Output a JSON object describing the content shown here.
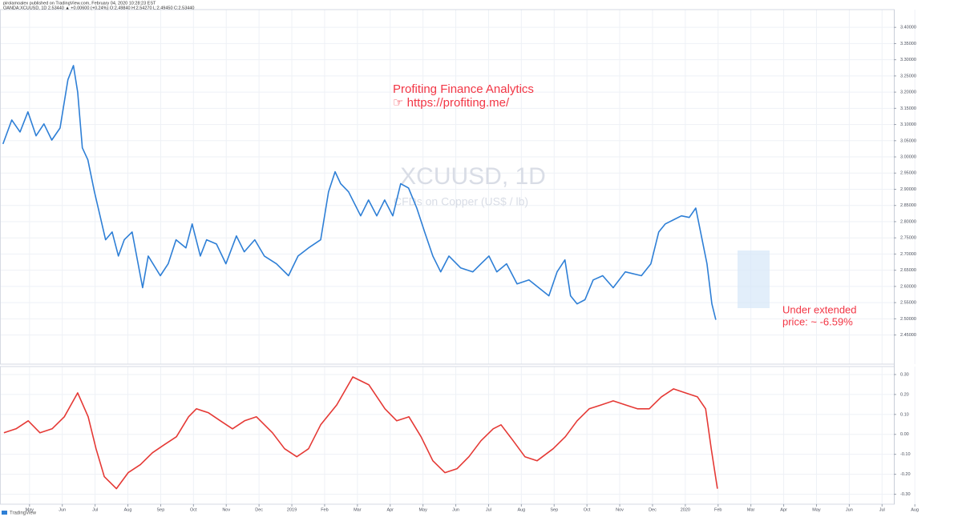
{
  "header": {
    "line1": "pirolamoalex published on TradingView.com, February 04, 2020 10:28:23 EST",
    "line2": "OANDA:XCUUSD, 1D 2.53440 ▲ +0.00600 (+0.24%) O:2.49840 H:2.54270 L:2.49450 C:2.53440"
  },
  "footer": "TradingView",
  "chart_data": [
    {
      "type": "line",
      "title": "XCUUSD, 1D",
      "subtitle": "CFDs on Copper (US$ / lb)",
      "annotations": [
        "Profiting Finance Analytics",
        "☞ https://profiting.me/",
        "Under extended",
        "price: ~ -6.59%"
      ],
      "x": [
        -0.81,
        -0.54,
        -0.29,
        -0.05,
        0.2,
        0.44,
        0.68,
        0.93,
        1.17,
        1.34,
        1.47,
        1.61,
        1.78,
        1.98,
        2.15,
        2.32,
        2.52,
        2.71,
        2.89,
        3.13,
        3.45,
        3.62,
        3.99,
        4.23,
        4.47,
        4.77,
        4.96,
        5.21,
        5.4,
        5.7,
        5.99,
        6.31,
        6.55,
        6.87,
        7.16,
        7.53,
        7.9,
        8.19,
        8.51,
        8.88,
        9.12,
        9.32,
        9.49,
        9.73,
        10.1,
        10.34,
        10.59,
        10.83,
        11.08,
        11.32,
        11.56,
        11.81,
        12.05,
        12.3,
        12.54,
        12.79,
        13.15,
        13.52,
        13.77,
        14.01,
        14.25,
        14.55,
        14.87,
        15.23,
        15.53,
        15.84,
        16.09,
        16.33,
        16.5,
        16.7,
        16.94,
        17.19,
        17.48,
        17.8,
        18.17,
        18.66,
        18.95,
        19.19,
        19.39,
        19.63,
        19.88,
        20.12,
        20.32,
        20.49,
        20.66,
        20.81,
        20.93
      ],
      "series": [
        {
          "name": "XCUUSD",
          "color": "#2e7fd6",
          "values": [
            3.04,
            3.114,
            3.077,
            3.139,
            3.065,
            3.102,
            3.052,
            3.089,
            3.238,
            3.282,
            3.2,
            3.028,
            2.991,
            2.892,
            2.818,
            2.744,
            2.768,
            2.694,
            2.744,
            2.768,
            2.596,
            2.694,
            2.633,
            2.67,
            2.744,
            2.719,
            2.793,
            2.694,
            2.744,
            2.731,
            2.67,
            2.756,
            2.707,
            2.744,
            2.694,
            2.67,
            2.633,
            2.694,
            2.719,
            2.744,
            2.892,
            2.954,
            2.917,
            2.892,
            2.818,
            2.867,
            2.818,
            2.867,
            2.818,
            2.917,
            2.904,
            2.842,
            2.768,
            2.694,
            2.645,
            2.694,
            2.657,
            2.645,
            2.67,
            2.694,
            2.645,
            2.67,
            2.608,
            2.62,
            2.596,
            2.571,
            2.645,
            2.682,
            2.571,
            2.546,
            2.559,
            2.62,
            2.633,
            2.596,
            2.645,
            2.633,
            2.67,
            2.768,
            2.793,
            2.805,
            2.818,
            2.813,
            2.842,
            2.756,
            2.67,
            2.546,
            2.497
          ]
        }
      ],
      "xlim": [
        -0.9,
        26.36
      ],
      "ylim": [
        2.36,
        3.44
      ],
      "yticks": [
        {
          "value": 2.45,
          "label": "2.45000"
        },
        {
          "value": 2.5,
          "label": "2.50000"
        },
        {
          "value": 2.55,
          "label": "2.55000"
        },
        {
          "value": 2.6,
          "label": "2.60000"
        },
        {
          "value": 2.65,
          "label": "2.65000"
        },
        {
          "value": 2.7,
          "label": "2.70000"
        },
        {
          "value": 2.75,
          "label": "2.75000"
        },
        {
          "value": 2.8,
          "label": "2.80000"
        },
        {
          "value": 2.85,
          "label": "2.85000"
        },
        {
          "value": 2.9,
          "label": "2.90000"
        },
        {
          "value": 2.95,
          "label": "2.95000"
        },
        {
          "value": 3.0,
          "label": "3.00000"
        },
        {
          "value": 3.05,
          "label": "3.05000"
        },
        {
          "value": 3.1,
          "label": "3.10000"
        },
        {
          "value": 3.15,
          "label": "3.15000"
        },
        {
          "value": 3.2,
          "label": "3.20000"
        },
        {
          "value": 3.25,
          "label": "3.25000"
        },
        {
          "value": 3.3,
          "label": "3.30000"
        },
        {
          "value": 3.35,
          "label": "3.35000"
        },
        {
          "value": 3.4,
          "label": "3.40000"
        }
      ],
      "grid": true
    },
    {
      "type": "line",
      "x": [
        -0.78,
        -0.41,
        -0.04,
        0.32,
        0.69,
        1.06,
        1.47,
        1.79,
        2.03,
        2.28,
        2.65,
        3.01,
        3.38,
        3.75,
        4.11,
        4.48,
        4.85,
        5.09,
        5.46,
        5.82,
        6.19,
        6.56,
        6.92,
        7.41,
        7.78,
        8.15,
        8.51,
        8.88,
        9.37,
        9.86,
        10.35,
        10.84,
        11.2,
        11.57,
        11.94,
        12.3,
        12.67,
        13.04,
        13.4,
        13.77,
        14.14,
        14.38,
        14.75,
        15.11,
        15.48,
        15.97,
        16.34,
        16.7,
        17.07,
        17.44,
        17.8,
        18.17,
        18.54,
        18.9,
        19.27,
        19.64,
        20.0,
        20.37,
        20.62,
        20.79,
        20.98
      ],
      "series": [
        {
          "name": "Oscillator",
          "color": "#e53935",
          "values": [
            0.008,
            0.028,
            0.068,
            0.008,
            0.028,
            0.088,
            0.208,
            0.088,
            -0.072,
            -0.212,
            -0.272,
            -0.192,
            -0.152,
            -0.092,
            -0.052,
            -0.012,
            0.088,
            0.128,
            0.108,
            0.068,
            0.028,
            0.068,
            0.088,
            0.008,
            -0.072,
            -0.112,
            -0.072,
            0.048,
            0.148,
            0.288,
            0.248,
            0.128,
            0.068,
            0.088,
            -0.012,
            -0.132,
            -0.192,
            -0.172,
            -0.112,
            -0.032,
            0.028,
            0.048,
            -0.032,
            -0.112,
            -0.132,
            -0.072,
            -0.012,
            0.068,
            0.128,
            0.148,
            0.168,
            0.148,
            0.128,
            0.128,
            0.188,
            0.228,
            0.208,
            0.188,
            0.128,
            -0.072,
            -0.272
          ]
        }
      ],
      "xlim": [
        -0.9,
        26.36
      ],
      "ylim": [
        -0.35,
        0.34
      ],
      "yticks": [
        {
          "value": -0.3,
          "label": "-0.30"
        },
        {
          "value": -0.2,
          "label": "-0.20"
        },
        {
          "value": -0.1,
          "label": "-0.10"
        },
        {
          "value": 0,
          "label": "0.00"
        },
        {
          "value": 0.1,
          "label": "0.10"
        },
        {
          "value": 0.2,
          "label": "0.20"
        },
        {
          "value": 0.3,
          "label": "0.30"
        }
      ],
      "xticks": [
        {
          "value": 0,
          "label": "May"
        },
        {
          "value": 1,
          "label": "Jun"
        },
        {
          "value": 2,
          "label": "Jul"
        },
        {
          "value": 3,
          "label": "Aug"
        },
        {
          "value": 4,
          "label": "Sep"
        },
        {
          "value": 5,
          "label": "Oct"
        },
        {
          "value": 6,
          "label": "Nov"
        },
        {
          "value": 7,
          "label": "Dec"
        },
        {
          "value": 8,
          "label": "2019"
        },
        {
          "value": 9,
          "label": "Feb"
        },
        {
          "value": 10,
          "label": "Mar"
        },
        {
          "value": 11,
          "label": "Apr"
        },
        {
          "value": 12,
          "label": "May"
        },
        {
          "value": 13,
          "label": "Jun"
        },
        {
          "value": 14,
          "label": "Jul"
        },
        {
          "value": 15,
          "label": "Aug"
        },
        {
          "value": 16,
          "label": "Sep"
        },
        {
          "value": 17,
          "label": "Oct"
        },
        {
          "value": 18,
          "label": "Nov"
        },
        {
          "value": 19,
          "label": "Dec"
        },
        {
          "value": 20,
          "label": "2020"
        },
        {
          "value": 21,
          "label": "Feb"
        },
        {
          "value": 22,
          "label": "Mar"
        },
        {
          "value": 23,
          "label": "Apr"
        },
        {
          "value": 24,
          "label": "May"
        },
        {
          "value": 25,
          "label": "Jun"
        },
        {
          "value": 26,
          "label": "Jul"
        },
        {
          "value": 27,
          "label": "Aug"
        }
      ],
      "grid": true
    }
  ]
}
